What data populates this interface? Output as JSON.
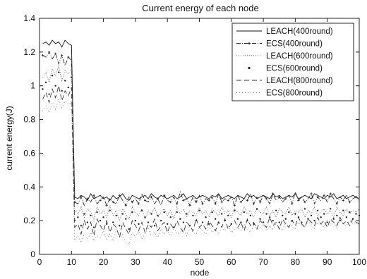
{
  "chart_data": {
    "type": "line",
    "title": "Current energy of each node",
    "xlabel": "node",
    "ylabel": "current energy(J)",
    "xlim": [
      0,
      100
    ],
    "ylim": [
      0,
      1.4
    ],
    "xticks": [
      0,
      10,
      20,
      30,
      40,
      50,
      60,
      70,
      80,
      90,
      100
    ],
    "xtick_labels": [
      "0",
      "10",
      "20",
      "30",
      "40",
      "50",
      "60",
      "70",
      "80",
      "90",
      "100"
    ],
    "yticks": [
      0,
      0.2,
      0.4,
      0.6,
      0.8,
      1,
      1.2,
      1.4
    ],
    "ytick_labels": [
      "0",
      "0.2",
      "0.4",
      "0.6",
      "0.8",
      "1",
      "1.2",
      "1.4"
    ],
    "grid": false,
    "legend_position": "top-right",
    "x": [
      1,
      2,
      3,
      4,
      5,
      6,
      7,
      8,
      9,
      10,
      11,
      12,
      13,
      14,
      15,
      16,
      17,
      18,
      19,
      20,
      21,
      22,
      23,
      24,
      25,
      26,
      27,
      28,
      29,
      30,
      31,
      32,
      33,
      34,
      35,
      36,
      37,
      38,
      39,
      40,
      41,
      42,
      43,
      44,
      45,
      46,
      47,
      48,
      49,
      50,
      51,
      52,
      53,
      54,
      55,
      56,
      57,
      58,
      59,
      60,
      61,
      62,
      63,
      64,
      65,
      66,
      67,
      68,
      69,
      70,
      71,
      72,
      73,
      74,
      75,
      76,
      77,
      78,
      79,
      80,
      81,
      82,
      83,
      84,
      85,
      86,
      87,
      88,
      89,
      90,
      91,
      92,
      93,
      94,
      95,
      96,
      97,
      98,
      99,
      100
    ],
    "series": [
      {
        "name": "LEACH(400round)",
        "color": "#111111",
        "dash": "",
        "marker": "none",
        "values": [
          1.25,
          1.26,
          1.24,
          1.27,
          1.25,
          1.26,
          1.23,
          1.27,
          1.25,
          1.24,
          0.34,
          0.33,
          0.35,
          0.34,
          0.32,
          0.36,
          0.33,
          0.34,
          0.35,
          0.33,
          0.34,
          0.32,
          0.35,
          0.33,
          0.34,
          0.36,
          0.33,
          0.32,
          0.35,
          0.34,
          0.33,
          0.34,
          0.35,
          0.33,
          0.36,
          0.34,
          0.33,
          0.35,
          0.34,
          0.33,
          0.34,
          0.35,
          0.33,
          0.34,
          0.36,
          0.33,
          0.34,
          0.35,
          0.33,
          0.34,
          0.35,
          0.34,
          0.33,
          0.35,
          0.34,
          0.36,
          0.33,
          0.34,
          0.35,
          0.34,
          0.33,
          0.35,
          0.34,
          0.33,
          0.36,
          0.34,
          0.35,
          0.33,
          0.34,
          0.35,
          0.34,
          0.33,
          0.36,
          0.34,
          0.35,
          0.33,
          0.34,
          0.35,
          0.34,
          0.36,
          0.33,
          0.34,
          0.35,
          0.34,
          0.33,
          0.36,
          0.35,
          0.34,
          0.33,
          0.35,
          0.34,
          0.36,
          0.33,
          0.34,
          0.35,
          0.33,
          0.34,
          0.35,
          0.34,
          0.33
        ]
      },
      {
        "name": "ECS(400round)",
        "color": "#222222",
        "dash": "6,2,1,2",
        "marker": "plus",
        "values": [
          1.18,
          1.17,
          1.2,
          1.16,
          1.19,
          1.13,
          1.18,
          1.12,
          1.17,
          1.15,
          0.31,
          0.3,
          0.34,
          0.29,
          0.33,
          0.31,
          0.35,
          0.3,
          0.32,
          0.34,
          0.29,
          0.33,
          0.31,
          0.3,
          0.35,
          0.32,
          0.29,
          0.34,
          0.31,
          0.33,
          0.3,
          0.36,
          0.32,
          0.31,
          0.34,
          0.3,
          0.33,
          0.29,
          0.35,
          0.32,
          0.31,
          0.34,
          0.3,
          0.37,
          0.32,
          0.33,
          0.29,
          0.34,
          0.31,
          0.35,
          0.3,
          0.33,
          0.32,
          0.34,
          0.3,
          0.36,
          0.31,
          0.33,
          0.32,
          0.34,
          0.29,
          0.35,
          0.31,
          0.33,
          0.32,
          0.36,
          0.3,
          0.34,
          0.31,
          0.35,
          0.33,
          0.3,
          0.36,
          0.32,
          0.34,
          0.31,
          0.33,
          0.35,
          0.3,
          0.37,
          0.32,
          0.34,
          0.31,
          0.33,
          0.36,
          0.3,
          0.34,
          0.32,
          0.35,
          0.31,
          0.36,
          0.33,
          0.3,
          0.34,
          0.32,
          0.35,
          0.31,
          0.33,
          0.34,
          0.32
        ]
      },
      {
        "name": "LEACH(600round)",
        "color": "#555555",
        "dash": "1,2",
        "marker": "none",
        "values": [
          1.05,
          1.08,
          1.02,
          1.1,
          1.06,
          1.12,
          1.03,
          1.09,
          1.07,
          1.1,
          0.26,
          0.24,
          0.28,
          0.22,
          0.27,
          0.25,
          0.21,
          0.28,
          0.24,
          0.26,
          0.22,
          0.29,
          0.23,
          0.26,
          0.2,
          0.27,
          0.24,
          0.21,
          0.28,
          0.25,
          0.23,
          0.27,
          0.21,
          0.26,
          0.24,
          0.28,
          0.22,
          0.25,
          0.27,
          0.23,
          0.26,
          0.21,
          0.28,
          0.24,
          0.27,
          0.22,
          0.26,
          0.25,
          0.23,
          0.28,
          0.24,
          0.26,
          0.22,
          0.27,
          0.25,
          0.23,
          0.28,
          0.24,
          0.26,
          0.22,
          0.27,
          0.25,
          0.23,
          0.28,
          0.24,
          0.26,
          0.22,
          0.27,
          0.25,
          0.24,
          0.28,
          0.23,
          0.26,
          0.22,
          0.27,
          0.25,
          0.24,
          0.28,
          0.23,
          0.26,
          0.25,
          0.27,
          0.22,
          0.26,
          0.24,
          0.28,
          0.23,
          0.25,
          0.27,
          0.24,
          0.26,
          0.22,
          0.28,
          0.25,
          0.23,
          0.27,
          0.24,
          0.26,
          0.25,
          0.27
        ]
      },
      {
        "name": "ECS(600round)",
        "color": "#222222",
        "dash": "none",
        "marker": "dot",
        "values": [
          0.98,
          1.02,
          0.95,
          1.06,
          1.0,
          1.08,
          0.97,
          1.03,
          0.99,
          1.05,
          0.2,
          0.22,
          0.17,
          0.24,
          0.19,
          0.23,
          0.16,
          0.25,
          0.2,
          0.22,
          0.18,
          0.26,
          0.19,
          0.23,
          0.17,
          0.24,
          0.21,
          0.15,
          0.25,
          0.2,
          0.18,
          0.26,
          0.22,
          0.19,
          0.24,
          0.17,
          0.23,
          0.2,
          0.25,
          0.18,
          0.22,
          0.16,
          0.25,
          0.21,
          0.19,
          0.24,
          0.17,
          0.23,
          0.2,
          0.26,
          0.19,
          0.22,
          0.18,
          0.25,
          0.21,
          0.19,
          0.24,
          0.2,
          0.23,
          0.18,
          0.26,
          0.21,
          0.19,
          0.25,
          0.2,
          0.23,
          0.18,
          0.27,
          0.21,
          0.19,
          0.24,
          0.22,
          0.2,
          0.26,
          0.19,
          0.23,
          0.21,
          0.25,
          0.2,
          0.24,
          0.22,
          0.19,
          0.27,
          0.21,
          0.23,
          0.2,
          0.26,
          0.22,
          0.24,
          0.19,
          0.27,
          0.21,
          0.23,
          0.2,
          0.26,
          0.22,
          0.25,
          0.21,
          0.24,
          0.23
        ]
      },
      {
        "name": "LEACH(800round)",
        "color": "#333333",
        "dash": "7,4",
        "marker": "none",
        "values": [
          0.92,
          0.96,
          0.9,
          0.98,
          0.93,
          1.0,
          0.91,
          0.97,
          0.94,
          0.99,
          0.16,
          0.18,
          0.12,
          0.2,
          0.15,
          0.19,
          0.11,
          0.21,
          0.17,
          0.14,
          0.2,
          0.13,
          0.18,
          0.16,
          0.1,
          0.19,
          0.15,
          0.12,
          0.2,
          0.17,
          0.14,
          0.19,
          0.13,
          0.18,
          0.16,
          0.21,
          0.14,
          0.17,
          0.19,
          0.13,
          0.18,
          0.15,
          0.2,
          0.16,
          0.13,
          0.19,
          0.17,
          0.14,
          0.21,
          0.16,
          0.18,
          0.15,
          0.2,
          0.17,
          0.14,
          0.19,
          0.16,
          0.21,
          0.15,
          0.18,
          0.2,
          0.16,
          0.19,
          0.14,
          0.21,
          0.17,
          0.19,
          0.15,
          0.2,
          0.18,
          0.16,
          0.22,
          0.17,
          0.19,
          0.15,
          0.21,
          0.18,
          0.16,
          0.2,
          0.17,
          0.22,
          0.18,
          0.16,
          0.21,
          0.19,
          0.17,
          0.22,
          0.18,
          0.2,
          0.16,
          0.21,
          0.19,
          0.17,
          0.22,
          0.18,
          0.2,
          0.17,
          0.21,
          0.19,
          0.18
        ]
      },
      {
        "name": "ECS(800round)",
        "color": "#777777",
        "dash": "1,3",
        "marker": "none",
        "values": [
          0.85,
          0.88,
          0.84,
          0.9,
          0.86,
          0.92,
          0.87,
          0.91,
          0.89,
          0.9,
          0.08,
          0.11,
          0.07,
          0.12,
          0.09,
          0.13,
          0.08,
          0.11,
          0.1,
          0.14,
          0.09,
          0.12,
          0.08,
          0.15,
          0.1,
          0.12,
          0.07,
          0.06,
          0.13,
          0.1,
          0.14,
          0.09,
          0.12,
          0.16,
          0.11,
          0.13,
          0.1,
          0.15,
          0.12,
          0.14,
          0.11,
          0.16,
          0.12,
          0.13,
          0.15,
          0.11,
          0.17,
          0.13,
          0.12,
          0.16,
          0.14,
          0.12,
          0.17,
          0.13,
          0.15,
          0.12,
          0.16,
          0.14,
          0.17,
          0.13,
          0.15,
          0.16,
          0.14,
          0.18,
          0.15,
          0.13,
          0.17,
          0.15,
          0.16,
          0.18,
          0.14,
          0.17,
          0.15,
          0.18,
          0.16,
          0.14,
          0.19,
          0.16,
          0.17,
          0.15,
          0.19,
          0.17,
          0.16,
          0.2,
          0.17,
          0.15,
          0.19,
          0.18,
          0.16,
          0.2,
          0.17,
          0.19,
          0.16,
          0.21,
          0.18,
          0.17,
          0.2,
          0.18,
          0.19,
          0.17
        ]
      }
    ]
  }
}
